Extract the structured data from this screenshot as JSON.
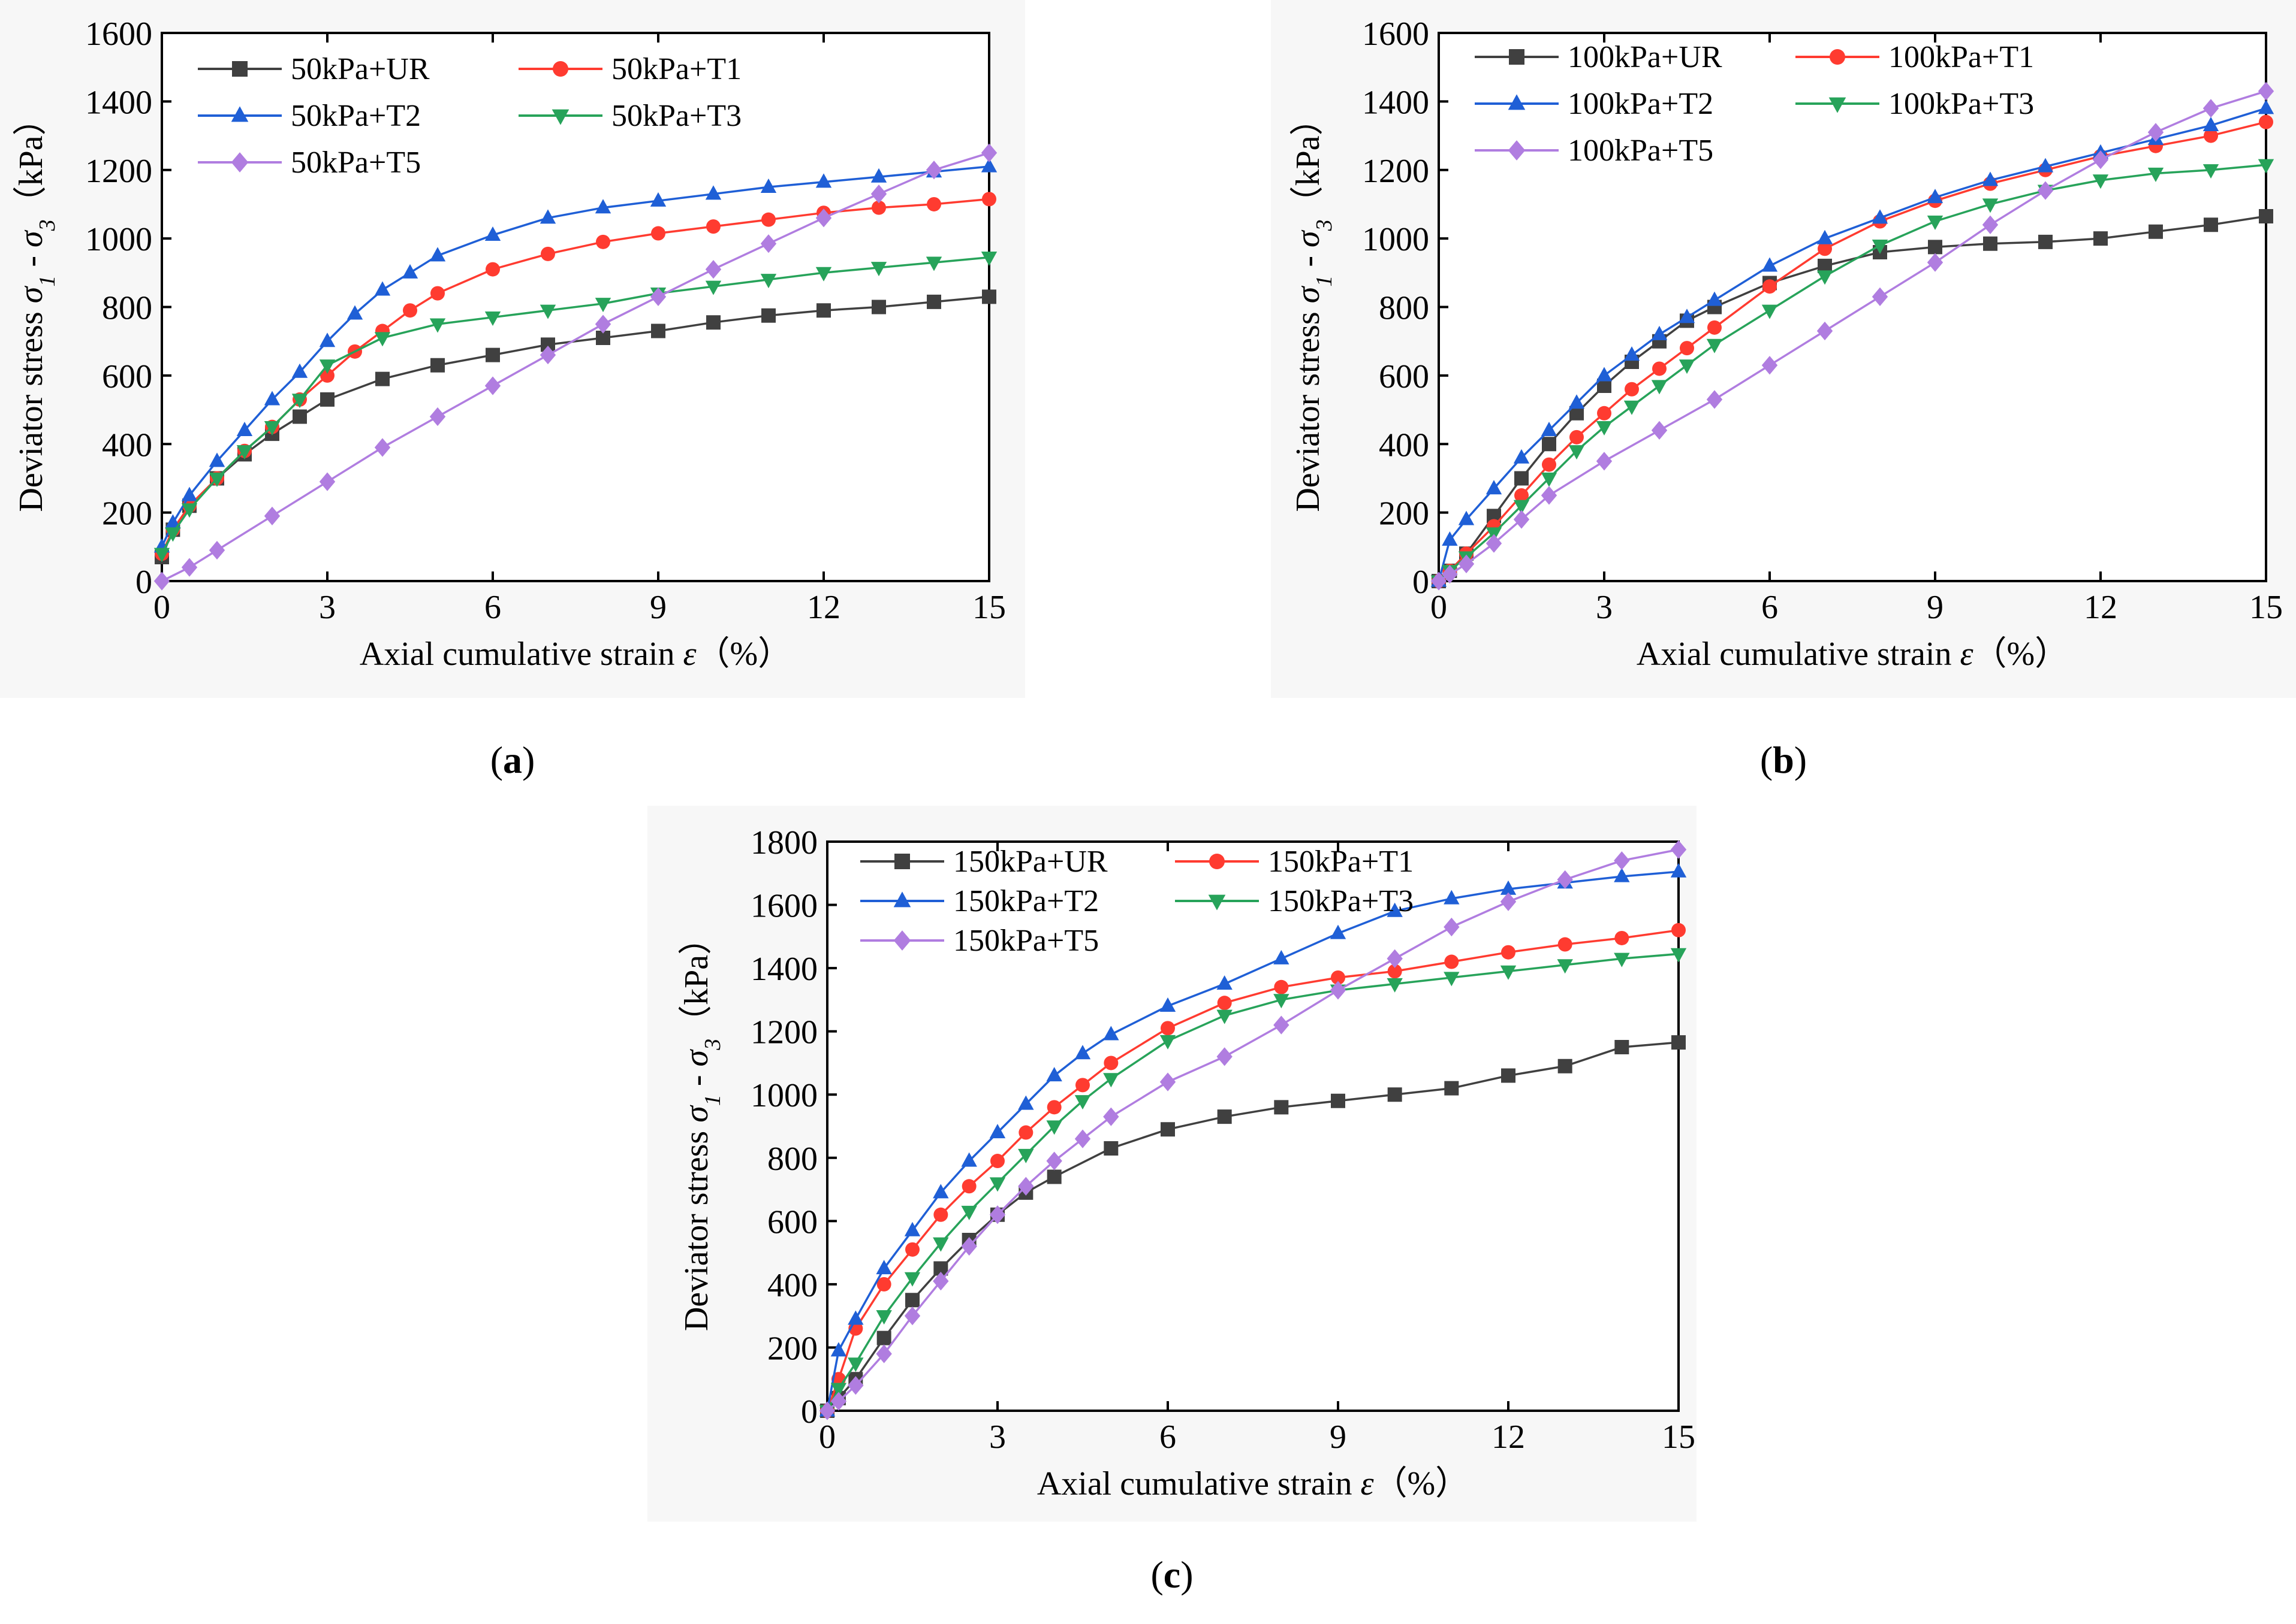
{
  "chart_data": [
    {
      "type": "line",
      "panel": "a",
      "caption": {
        "open": "(",
        "label": "a",
        "close": ")"
      },
      "xlabel": {
        "main": "Axial cumulative strain ",
        "symbol": "ε",
        "unit": "（%）"
      },
      "ylabel": {
        "main": "Deviator stress ",
        "s1": "σ",
        "sub1": "1",
        "mid": " - ",
        "s3": "σ",
        "sub3": "3",
        "unit": "（kPa）"
      },
      "xlim": [
        0,
        15
      ],
      "ylim": [
        0,
        1600
      ],
      "xticks": [
        0,
        3,
        6,
        9,
        12,
        15
      ],
      "yticks": [
        0,
        200,
        400,
        600,
        800,
        1000,
        1200,
        1400,
        1600
      ],
      "legend_columns": 2,
      "series": [
        {
          "name": "50kPa+UR",
          "color": "#404040",
          "marker": "square",
          "x": [
            0,
            0.2,
            0.5,
            1,
            1.5,
            2,
            2.5,
            3,
            4,
            5,
            6,
            7,
            8,
            9,
            10,
            11,
            12,
            13,
            14,
            15
          ],
          "y": [
            70,
            150,
            220,
            300,
            370,
            430,
            480,
            530,
            590,
            630,
            660,
            690,
            710,
            730,
            755,
            775,
            790,
            800,
            815,
            830
          ]
        },
        {
          "name": "50kPa+T1",
          "color": "#ff3b30",
          "marker": "circle",
          "x": [
            0,
            0.2,
            0.5,
            1,
            1.5,
            2,
            2.5,
            3,
            3.5,
            4,
            4.5,
            5,
            6,
            7,
            8,
            9,
            10,
            11,
            12,
            13,
            14,
            15
          ],
          "y": [
            80,
            150,
            220,
            300,
            380,
            450,
            530,
            600,
            670,
            730,
            790,
            840,
            910,
            955,
            990,
            1015,
            1035,
            1055,
            1075,
            1090,
            1100,
            1115
          ]
        },
        {
          "name": "50kPa+T2",
          "color": "#1f5fd6",
          "marker": "triangle",
          "x": [
            0,
            0.2,
            0.5,
            1,
            1.5,
            2,
            2.5,
            3,
            3.5,
            4,
            4.5,
            5,
            6,
            7,
            8,
            9,
            10,
            11,
            12,
            13,
            14,
            15
          ],
          "y": [
            100,
            170,
            250,
            350,
            440,
            530,
            610,
            700,
            780,
            850,
            900,
            950,
            1010,
            1060,
            1090,
            1110,
            1130,
            1150,
            1165,
            1180,
            1195,
            1210
          ]
        },
        {
          "name": "50kPa+T3",
          "color": "#27a35a",
          "marker": "triangle-down",
          "x": [
            0,
            0.2,
            0.5,
            1,
            1.5,
            2,
            2.5,
            3,
            4,
            5,
            6,
            7,
            8,
            9,
            10,
            11,
            12,
            13,
            14,
            15
          ],
          "y": [
            80,
            140,
            210,
            300,
            380,
            450,
            530,
            630,
            710,
            750,
            770,
            790,
            810,
            840,
            860,
            880,
            900,
            915,
            930,
            945
          ]
        },
        {
          "name": "50kPa+T5",
          "color": "#b07de0",
          "marker": "diamond",
          "x": [
            0,
            0.5,
            1,
            2,
            3,
            4,
            5,
            6,
            7,
            8,
            9,
            10,
            11,
            12,
            13,
            14,
            15
          ],
          "y": [
            0,
            40,
            90,
            190,
            290,
            390,
            480,
            570,
            660,
            750,
            830,
            910,
            985,
            1060,
            1130,
            1200,
            1250
          ]
        }
      ]
    },
    {
      "type": "line",
      "panel": "b",
      "caption": {
        "open": "(",
        "label": "b",
        "close": ")"
      },
      "xlabel": {
        "main": "Axial cumulative strain ",
        "symbol": "ε",
        "unit": "（%）"
      },
      "ylabel": {
        "main": "Deviator stress ",
        "s1": "σ",
        "sub1": "1",
        "mid": " - ",
        "s3": "σ",
        "sub3": "3",
        "unit": "（kPa）"
      },
      "xlim": [
        0,
        15
      ],
      "ylim": [
        0,
        1600
      ],
      "xticks": [
        0,
        3,
        6,
        9,
        12,
        15
      ],
      "yticks": [
        0,
        200,
        400,
        600,
        800,
        1000,
        1200,
        1400,
        1600
      ],
      "legend_columns": 2,
      "series": [
        {
          "name": "100kPa+UR",
          "color": "#404040",
          "marker": "square",
          "x": [
            0,
            0.2,
            0.5,
            1,
            1.5,
            2,
            2.5,
            3,
            3.5,
            4,
            4.5,
            5,
            6,
            7,
            8,
            9,
            10,
            11,
            12,
            13,
            14,
            15
          ],
          "y": [
            0,
            30,
            80,
            190,
            300,
            400,
            490,
            570,
            640,
            700,
            760,
            800,
            870,
            920,
            960,
            975,
            985,
            990,
            1000,
            1020,
            1040,
            1065
          ]
        },
        {
          "name": "100kPa+T1",
          "color": "#ff3b30",
          "marker": "circle",
          "x": [
            0,
            0.2,
            0.5,
            1,
            1.5,
            2,
            2.5,
            3,
            3.5,
            4,
            4.5,
            5,
            6,
            7,
            8,
            9,
            10,
            11,
            12,
            13,
            14,
            15
          ],
          "y": [
            0,
            30,
            80,
            160,
            250,
            340,
            420,
            490,
            560,
            620,
            680,
            740,
            860,
            970,
            1050,
            1110,
            1160,
            1200,
            1240,
            1270,
            1300,
            1340
          ]
        },
        {
          "name": "100kPa+T2",
          "color": "#1f5fd6",
          "marker": "triangle",
          "x": [
            0,
            0.2,
            0.5,
            1,
            1.5,
            2,
            2.5,
            3,
            3.5,
            4,
            4.5,
            5,
            6,
            7,
            8,
            9,
            10,
            11,
            12,
            13,
            14,
            15
          ],
          "y": [
            0,
            120,
            180,
            270,
            360,
            440,
            520,
            600,
            660,
            720,
            770,
            820,
            920,
            1000,
            1060,
            1120,
            1170,
            1210,
            1250,
            1290,
            1330,
            1380
          ]
        },
        {
          "name": "100kPa+T3",
          "color": "#27a35a",
          "marker": "triangle-down",
          "x": [
            0,
            0.2,
            0.5,
            1,
            1.5,
            2,
            2.5,
            3,
            3.5,
            4,
            4.5,
            5,
            6,
            7,
            8,
            9,
            10,
            11,
            12,
            13,
            14,
            15
          ],
          "y": [
            0,
            30,
            70,
            140,
            220,
            300,
            380,
            450,
            510,
            570,
            630,
            690,
            790,
            890,
            980,
            1050,
            1100,
            1140,
            1170,
            1190,
            1200,
            1215
          ]
        },
        {
          "name": "100kPa+T5",
          "color": "#b07de0",
          "marker": "diamond",
          "x": [
            0,
            0.2,
            0.5,
            1,
            1.5,
            2,
            3,
            4,
            5,
            6,
            7,
            8,
            9,
            10,
            11,
            12,
            13,
            14,
            15
          ],
          "y": [
            0,
            20,
            50,
            110,
            180,
            250,
            350,
            440,
            530,
            630,
            730,
            830,
            930,
            1040,
            1140,
            1230,
            1310,
            1380,
            1430
          ]
        }
      ]
    },
    {
      "type": "line",
      "panel": "c",
      "caption": {
        "open": "(",
        "label": "c",
        "close": ")"
      },
      "xlabel": {
        "main": "Axial cumulative strain ",
        "symbol": "ε",
        "unit": "（%）"
      },
      "ylabel": {
        "main": "Deviator stress ",
        "s1": "σ",
        "sub1": "1",
        "mid": " - ",
        "s3": "σ",
        "sub3": "3",
        "unit": "（kPa）"
      },
      "xlim": [
        0,
        15
      ],
      "ylim": [
        0,
        1800
      ],
      "xticks": [
        0,
        3,
        6,
        9,
        12,
        15
      ],
      "yticks": [
        0,
        200,
        400,
        600,
        800,
        1000,
        1200,
        1400,
        1600,
        1800
      ],
      "legend_columns": 2,
      "series": [
        {
          "name": "150kPa+UR",
          "color": "#404040",
          "marker": "square",
          "x": [
            0,
            0.2,
            0.5,
            1,
            1.5,
            2,
            2.5,
            3,
            3.5,
            4,
            5,
            6,
            7,
            8,
            9,
            10,
            11,
            12,
            13,
            14,
            15
          ],
          "y": [
            0,
            40,
            100,
            230,
            350,
            450,
            540,
            620,
            690,
            740,
            830,
            890,
            930,
            960,
            980,
            1000,
            1020,
            1060,
            1090,
            1150,
            1165
          ]
        },
        {
          "name": "150kPa+T1",
          "color": "#ff3b30",
          "marker": "circle",
          "x": [
            0,
            0.2,
            0.5,
            1,
            1.5,
            2,
            2.5,
            3,
            3.5,
            4,
            4.5,
            5,
            6,
            7,
            8,
            9,
            10,
            11,
            12,
            13,
            14,
            15
          ],
          "y": [
            0,
            100,
            260,
            400,
            510,
            620,
            710,
            790,
            880,
            960,
            1030,
            1100,
            1210,
            1290,
            1340,
            1370,
            1390,
            1420,
            1450,
            1475,
            1495,
            1520
          ]
        },
        {
          "name": "150kPa+T2",
          "color": "#1f5fd6",
          "marker": "triangle",
          "x": [
            0,
            0.2,
            0.5,
            1,
            1.5,
            2,
            2.5,
            3,
            3.5,
            4,
            4.5,
            5,
            6,
            7,
            8,
            9,
            10,
            11,
            12,
            13,
            14,
            15
          ],
          "y": [
            0,
            190,
            290,
            450,
            570,
            690,
            790,
            880,
            970,
            1060,
            1130,
            1190,
            1280,
            1350,
            1430,
            1510,
            1580,
            1620,
            1650,
            1670,
            1690,
            1705
          ]
        },
        {
          "name": "150kPa+T3",
          "color": "#27a35a",
          "marker": "triangle-down",
          "x": [
            0,
            0.2,
            0.5,
            1,
            1.5,
            2,
            2.5,
            3,
            3.5,
            4,
            4.5,
            5,
            6,
            7,
            8,
            9,
            10,
            11,
            12,
            13,
            14,
            15
          ],
          "y": [
            0,
            70,
            150,
            300,
            420,
            530,
            630,
            720,
            810,
            900,
            980,
            1050,
            1170,
            1250,
            1300,
            1330,
            1350,
            1370,
            1390,
            1410,
            1430,
            1445
          ]
        },
        {
          "name": "150kPa+T5",
          "color": "#b07de0",
          "marker": "diamond",
          "x": [
            0,
            0.2,
            0.5,
            1,
            1.5,
            2,
            2.5,
            3,
            3.5,
            4,
            4.5,
            5,
            6,
            7,
            8,
            9,
            10,
            11,
            12,
            13,
            14,
            15
          ],
          "y": [
            0,
            30,
            80,
            180,
            300,
            410,
            520,
            620,
            710,
            790,
            860,
            930,
            1040,
            1120,
            1220,
            1330,
            1430,
            1530,
            1610,
            1680,
            1740,
            1775
          ]
        }
      ]
    }
  ]
}
